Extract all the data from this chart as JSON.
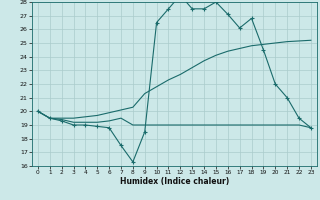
{
  "background_color": "#cce8e8",
  "grid_color": "#aacccc",
  "line_color": "#1a6b6b",
  "xlabel": "Humidex (Indice chaleur)",
  "xlim": [
    -0.5,
    23.5
  ],
  "ylim": [
    16,
    28
  ],
  "yticks": [
    16,
    17,
    18,
    19,
    20,
    21,
    22,
    23,
    24,
    25,
    26,
    27,
    28
  ],
  "xticks": [
    0,
    1,
    2,
    3,
    4,
    5,
    6,
    7,
    8,
    9,
    10,
    11,
    12,
    13,
    14,
    15,
    16,
    17,
    18,
    19,
    20,
    21,
    22,
    23
  ],
  "series1_x": [
    0,
    1,
    2,
    3,
    4,
    5,
    6,
    7,
    8,
    9,
    10,
    11,
    12,
    13,
    14,
    15,
    16,
    17,
    18,
    19,
    20,
    21,
    22,
    23
  ],
  "series1_y": [
    20,
    19.5,
    19.3,
    19.0,
    19.0,
    18.9,
    18.8,
    17.5,
    16.3,
    18.5,
    26.5,
    27.5,
    28.5,
    27.5,
    27.5,
    28.0,
    27.1,
    26.1,
    26.8,
    24.5,
    22.0,
    21.0,
    19.5,
    18.8
  ],
  "series2_x": [
    0,
    1,
    2,
    3,
    4,
    5,
    6,
    7,
    8,
    9,
    10,
    11,
    12,
    13,
    14,
    15,
    16,
    17,
    18,
    19,
    20,
    21,
    22,
    23
  ],
  "series2_y": [
    20.0,
    19.5,
    19.5,
    19.5,
    19.6,
    19.7,
    19.9,
    20.1,
    20.3,
    21.3,
    21.8,
    22.3,
    22.7,
    23.2,
    23.7,
    24.1,
    24.4,
    24.6,
    24.8,
    24.9,
    25.0,
    25.1,
    25.15,
    25.2
  ],
  "series3_x": [
    0,
    1,
    2,
    3,
    4,
    5,
    6,
    7,
    8,
    9,
    10,
    11,
    12,
    13,
    14,
    15,
    16,
    17,
    18,
    19,
    20,
    21,
    22,
    23
  ],
  "series3_y": [
    20.0,
    19.5,
    19.4,
    19.2,
    19.2,
    19.2,
    19.3,
    19.5,
    19.0,
    19.0,
    19.0,
    19.0,
    19.0,
    19.0,
    19.0,
    19.0,
    19.0,
    19.0,
    19.0,
    19.0,
    19.0,
    19.0,
    19.0,
    18.8
  ]
}
